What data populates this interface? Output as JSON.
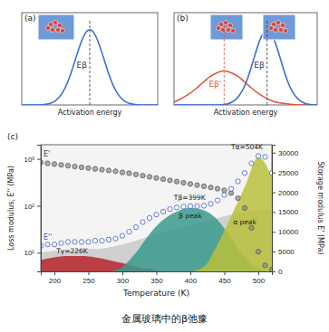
{
  "caption": "金属玻璃中的β弛豫",
  "chart_data": [
    {
      "type": "line",
      "title": "(a)",
      "x_label": "Activation energy",
      "tick_labels": false,
      "xlim": [
        0,
        10
      ],
      "ylim": [
        0,
        1
      ],
      "series": [
        {
          "color": "#3b6fd6",
          "x": [
            0,
            0.5,
            1,
            1.5,
            2,
            2.5,
            3,
            3.5,
            4,
            4.5,
            5,
            5.5,
            6,
            6.5,
            7,
            7.5,
            8,
            8.5,
            9,
            9.5,
            10
          ],
          "values": [
            0,
            0,
            0,
            0,
            0.01,
            0.04,
            0.12,
            0.28,
            0.52,
            0.75,
            0.85,
            0.75,
            0.52,
            0.28,
            0.12,
            0.04,
            0.01,
            0,
            0,
            0,
            0
          ]
        }
      ],
      "annotations": [
        {
          "text": "Eβ",
          "x": 5,
          "y": 0.4,
          "color": "#333333"
        }
      ]
    },
    {
      "type": "line",
      "title": "(b)",
      "x_label": "Activation energy",
      "tick_labels": false,
      "xlim": [
        0,
        10
      ],
      "ylim": [
        0,
        1
      ],
      "series": [
        {
          "color": "#e0533f",
          "x": [
            0,
            0.5,
            1,
            1.5,
            2,
            2.5,
            3,
            3.5,
            4,
            4.5,
            5,
            5.5,
            6,
            6.5,
            7,
            7.5,
            8,
            8.5,
            9,
            9.5,
            10
          ],
          "values": [
            0.03,
            0.07,
            0.11,
            0.17,
            0.24,
            0.31,
            0.35,
            0.38,
            0.35,
            0.31,
            0.24,
            0.17,
            0.11,
            0.07,
            0.03,
            0.02,
            0.01,
            0,
            0,
            0,
            0
          ]
        },
        {
          "color": "#3b6fd6",
          "x": [
            0,
            0.5,
            1,
            1.5,
            2,
            2.5,
            3,
            3.5,
            4,
            4.5,
            5,
            5.5,
            6,
            6.5,
            7,
            7.5,
            8,
            8.5,
            9,
            9.5,
            10
          ],
          "values": [
            0,
            0,
            0,
            0,
            0,
            0,
            0,
            0,
            0.02,
            0.08,
            0.21,
            0.46,
            0.73,
            0.85,
            0.73,
            0.46,
            0.21,
            0.08,
            0.02,
            0,
            0
          ]
        }
      ],
      "annotations": [
        {
          "text": "Eβ'",
          "x": 3.5,
          "y": 0.2,
          "color": "#e0533f"
        },
        {
          "text": "Eβ",
          "x": 6.5,
          "y": 0.4,
          "color": "#333333"
        }
      ]
    },
    {
      "type": "line",
      "title": "(c)",
      "x_label": "Temperature (K)",
      "y_label": "Loss modulus, E'' (MPa)",
      "y2_label": "Storage modulus E' (MPa)",
      "log": "y",
      "xlim": [
        180,
        520
      ],
      "xticks": [
        200,
        250,
        300,
        350,
        400,
        450,
        500
      ],
      "ylim": [
        4,
        2000
      ],
      "yticks": [
        {
          "value": 10,
          "label": "10¹"
        },
        {
          "value": 100,
          "label": "10²"
        },
        {
          "value": 1000,
          "label": "10³"
        }
      ],
      "y2lim": [
        0,
        32000
      ],
      "y2ticks": [
        0,
        5000,
        10000,
        15000,
        20000,
        25000,
        30000
      ],
      "series": [
        {
          "type": "area",
          "color": "#c9c9c9",
          "x": [
            180,
            200,
            220,
            240,
            260,
            280,
            300,
            320,
            340,
            360,
            380,
            400,
            420,
            440,
            460,
            480,
            500,
            520
          ],
          "values": [
            10,
            11,
            11,
            12,
            12,
            13,
            15,
            18,
            22,
            27,
            32,
            38,
            45,
            55,
            65,
            75,
            80,
            80
          ]
        },
        {
          "type": "area",
          "color": "#b5262d",
          "x": [
            180,
            200,
            220,
            240,
            260,
            280,
            300,
            320,
            340,
            360,
            380,
            400,
            420,
            440,
            460,
            480,
            500,
            520
          ],
          "values": [
            7,
            8,
            8.5,
            8.5,
            8,
            7,
            6,
            5,
            4.5,
            4,
            4,
            4,
            4,
            4,
            4,
            4,
            4,
            4
          ]
        },
        {
          "type": "area",
          "color": "#3a9a8c",
          "x": [
            180,
            200,
            220,
            240,
            260,
            280,
            300,
            320,
            340,
            360,
            380,
            400,
            420,
            440,
            460,
            480,
            500,
            520
          ],
          "values": [
            4,
            4,
            4,
            4,
            4,
            4,
            5,
            10,
            25,
            50,
            75,
            90,
            80,
            50,
            20,
            8,
            4.5,
            4
          ]
        },
        {
          "type": "area",
          "color": "#b8c13a",
          "x": [
            180,
            200,
            220,
            240,
            260,
            280,
            300,
            320,
            340,
            360,
            380,
            400,
            420,
            440,
            460,
            480,
            500,
            520
          ],
          "values": [
            4,
            4,
            4,
            4,
            4,
            4,
            4,
            4,
            4,
            4,
            4,
            4,
            5,
            15,
            60,
            250,
            1100,
            400
          ]
        },
        {
          "name": "E'",
          "type": "scatter",
          "axis": "y2",
          "color": "#8c8c8c",
          "marker": "circle",
          "x": [
            180,
            190,
            200,
            210,
            220,
            230,
            240,
            250,
            260,
            270,
            280,
            290,
            300,
            310,
            320,
            330,
            340,
            350,
            360,
            370,
            380,
            390,
            400,
            410,
            420,
            430,
            440,
            450,
            460,
            470,
            480,
            490,
            500,
            510,
            520
          ],
          "values": [
            27500,
            27300,
            27100,
            26900,
            26700,
            26500,
            26300,
            26100,
            25900,
            25700,
            25500,
            25300,
            25000,
            24800,
            24500,
            24200,
            23900,
            23600,
            23300,
            23000,
            22700,
            22400,
            22100,
            21800,
            21500,
            21200,
            20900,
            20500,
            19800,
            18500,
            16000,
            11000,
            5000,
            1500,
            500
          ]
        },
        {
          "name": "E''",
          "type": "scatter",
          "color": "#3a5bc7",
          "marker": "circle",
          "x": [
            180,
            190,
            200,
            210,
            220,
            230,
            240,
            250,
            260,
            270,
            280,
            290,
            300,
            310,
            320,
            330,
            340,
            350,
            360,
            370,
            380,
            390,
            400,
            410,
            420,
            430,
            440,
            450,
            460,
            470,
            480,
            490,
            500,
            510,
            520
          ],
          "values": [
            14,
            15,
            15,
            16,
            17,
            17,
            17,
            17,
            18,
            18,
            19,
            20,
            23,
            28,
            35,
            45,
            55,
            65,
            75,
            85,
            92,
            96,
            98,
            98,
            100,
            110,
            130,
            170,
            230,
            330,
            500,
            800,
            1150,
            1100,
            500
          ]
        }
      ],
      "annotations": [
        {
          "text": "Tγ=226K",
          "x": 226,
          "y": 7
        },
        {
          "text": "Tβ=399K",
          "x": 399,
          "y": 98
        },
        {
          "text": "Tα=504K",
          "x": 504,
          "y": 1150
        },
        {
          "text": "β peak",
          "x": 400,
          "y": 40
        },
        {
          "text": "α peak",
          "x": 480,
          "y": 30
        }
      ]
    }
  ]
}
